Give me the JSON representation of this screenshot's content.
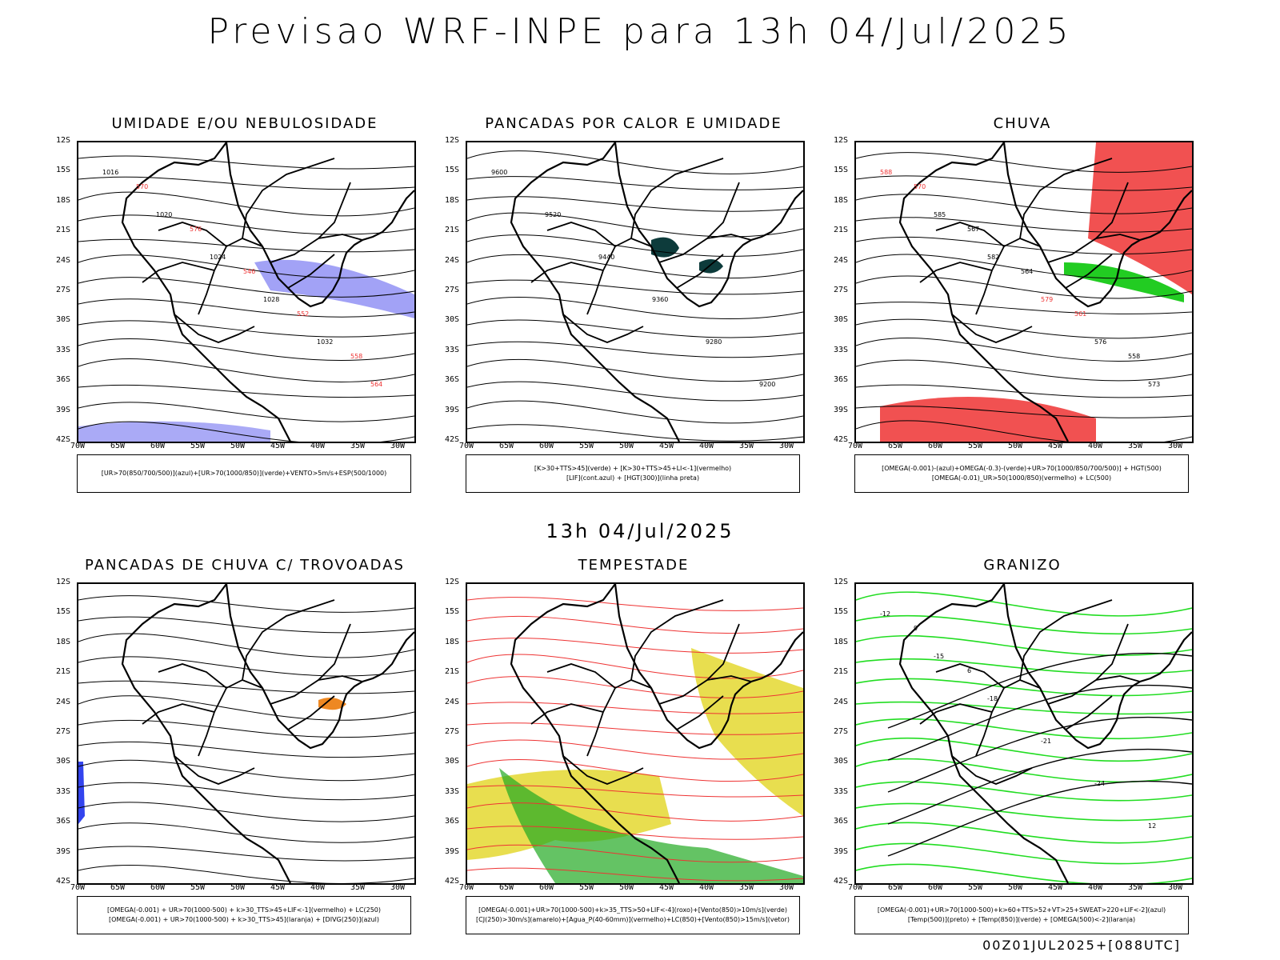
{
  "title": "Previsao WRF-INPE  para 13h 04/Jul/2025",
  "subtitle": "13h 04/Jul/2025",
  "footer": "00Z01JUL2025+[088UTC]",
  "lat_ticks": [
    "12S",
    "15S",
    "18S",
    "21S",
    "24S",
    "27S",
    "30S",
    "33S",
    "36S",
    "39S",
    "42S"
  ],
  "lon_ticks": [
    "70W",
    "65W",
    "60W",
    "55W",
    "50W",
    "45W",
    "40W",
    "35W",
    "30W"
  ],
  "panels": [
    {
      "title": "UMIDADE E/OU NEBULOSIDADE",
      "legend": [
        "[UR>70(850/700/500)](azul)+[UR>70(1000/850)](verde)+VENTO>5m/s+ESP(500/1000)"
      ],
      "labels": [
        "1016",
        "1020",
        "1024",
        "1028",
        "1032",
        "564",
        "570",
        "576",
        "546",
        "552",
        "558"
      ],
      "colors": {
        "low_humidity": "#22cc22",
        "high_humidity": "#5555ee",
        "thickness": "#ee3333"
      }
    },
    {
      "title": "PANCADAS POR CALOR E UMIDADE",
      "legend": [
        "[K>30+TTS>45](verde) + [K>30+TTS>45+LI<-1](vermelho)",
        "[LIF](cont.azul) + [HGT(300)](linha preta)"
      ],
      "labels": [
        "9600",
        "9520",
        "9440",
        "9360",
        "9280",
        "9200"
      ],
      "colors": {
        "lif": "#3344ee",
        "convective": "#0d3b3b"
      }
    },
    {
      "title": "CHUVA",
      "legend": [
        "[OMEGA(-0.001)-(azul)+OMEGA(-0.3)-(verde)+UR>70(1000/850/700/500)] + HGT(500)",
        "[OMEGA(-0.01)_UR>50(1000/850)(vermelho) + LC(500)"
      ],
      "labels": [
        "588",
        "585",
        "582",
        "579",
        "576",
        "573",
        "570",
        "567",
        "564",
        "561",
        "558"
      ],
      "colors": {
        "rain": "#ee3333",
        "omega_weak": "#2244ee",
        "omega_strong": "#22cc22"
      }
    },
    {
      "title": "PANCADAS DE CHUVA C/ TROVOADAS",
      "legend": [
        "[OMEGA(-0.001) + UR>70(1000-500) + k>30_TTS>45+LIF<-1](vermelho) + LC(250)",
        "[OMEGA(-0.001) + UR>70(1000-500) + k>30_TTS>45](laranja) + [DIVG(250)](azul)"
      ],
      "labels": [],
      "colors": {
        "storm": "#ee8822",
        "divg": "#3344ee"
      }
    },
    {
      "title": "TEMPESTADE",
      "legend": [
        "[OMEGA(-0.001)+UR>70(1000-500)+k>35_TTS>50+LIF<-4](roxo)+[Vento(850)>10m/s](verde)",
        "[CJ(250)>30m/s](amarelo)+[Agua_P(40-60mm)](vermelho)+LC(850)+[Vento(850)>15m/s](vetor)"
      ],
      "labels": [],
      "colors": {
        "jet": "#e4d830",
        "wind": "#22aa22",
        "streamline": "#ee3333"
      }
    },
    {
      "title": "GRANIZO",
      "legend": [
        "[OMEGA(-0.001)+UR>70(1000-500)+k>60+TTS>52+VT>25+SWEAT>220+LIF<-2](azul)",
        "[Temp(500)](preto) + [Temp(850)](verde) + [OMEGA(500)<-2](laranja)"
      ],
      "labels": [
        "-12",
        "-15",
        "-18",
        "-21",
        "-24",
        "12",
        "9",
        "6"
      ],
      "colors": {
        "t850": "#22dd22",
        "t500": "#000000",
        "omega": "#ee8822"
      }
    }
  ]
}
